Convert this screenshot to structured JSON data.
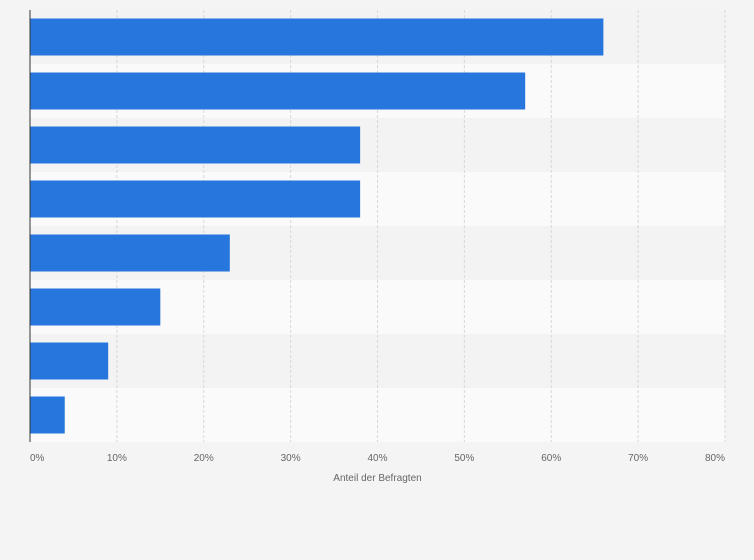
{
  "chart_data": {
    "type": "bar",
    "orientation": "horizontal",
    "values": [
      66,
      57,
      38,
      38,
      23,
      15,
      9,
      4
    ],
    "xlabel": "Anteil der Befragten",
    "xlim": [
      0,
      80
    ],
    "ticks": [
      {
        "value": 0,
        "label": "0%"
      },
      {
        "value": 10,
        "label": "10%"
      },
      {
        "value": 20,
        "label": "20%"
      },
      {
        "value": 30,
        "label": "30%"
      },
      {
        "value": 40,
        "label": "40%"
      },
      {
        "value": 50,
        "label": "50%"
      },
      {
        "value": 60,
        "label": "60%"
      },
      {
        "value": 70,
        "label": "70%"
      },
      {
        "value": 80,
        "label": "80%"
      }
    ],
    "grid": true,
    "colors": {
      "bar": "#2776dd",
      "background": "#f4f4f4",
      "band_light": "#fafafa",
      "band_dark": "#f3f3f3",
      "grid": "#d8d8d8",
      "axis": "#333333",
      "text": "#666666"
    }
  }
}
